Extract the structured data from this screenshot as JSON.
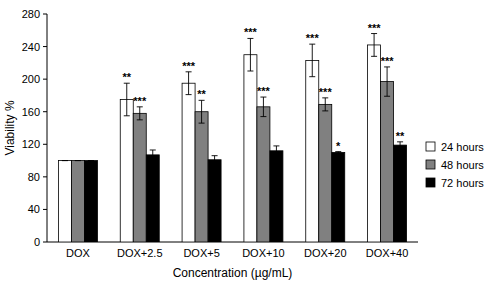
{
  "chart_data": {
    "type": "bar",
    "x_label": "Concentration (µg/mL)",
    "y_label": "Viability %",
    "categories": [
      "DOX",
      "DOX+2.5",
      "DOX+5",
      "DOX+10",
      "DOX+20",
      "DOX+40"
    ],
    "series": [
      {
        "name": "24 hours",
        "color": "#ffffff",
        "values": [
          100,
          175,
          195,
          230,
          223,
          242
        ],
        "errors": [
          0,
          20,
          14,
          20,
          20,
          14
        ],
        "annotations": [
          null,
          "**",
          "***",
          "***",
          "***",
          "***"
        ]
      },
      {
        "name": "48 hours",
        "color": "#808080",
        "values": [
          100,
          158,
          160,
          166,
          169,
          197
        ],
        "errors": [
          0,
          8,
          14,
          12,
          8,
          18
        ],
        "annotations": [
          null,
          "***",
          "**",
          "***",
          "***",
          "***"
        ]
      },
      {
        "name": "72 hours",
        "color": "#000000",
        "values": [
          100,
          107,
          101,
          112,
          110,
          119
        ],
        "errors": [
          0,
          6,
          5,
          6,
          1,
          4
        ],
        "annotations": [
          null,
          null,
          null,
          null,
          "*",
          "**"
        ]
      }
    ],
    "ylim": [
      0,
      280
    ],
    "yticks": [
      0,
      40,
      80,
      120,
      160,
      200,
      240,
      280
    ],
    "grid": false,
    "legend": "right"
  }
}
